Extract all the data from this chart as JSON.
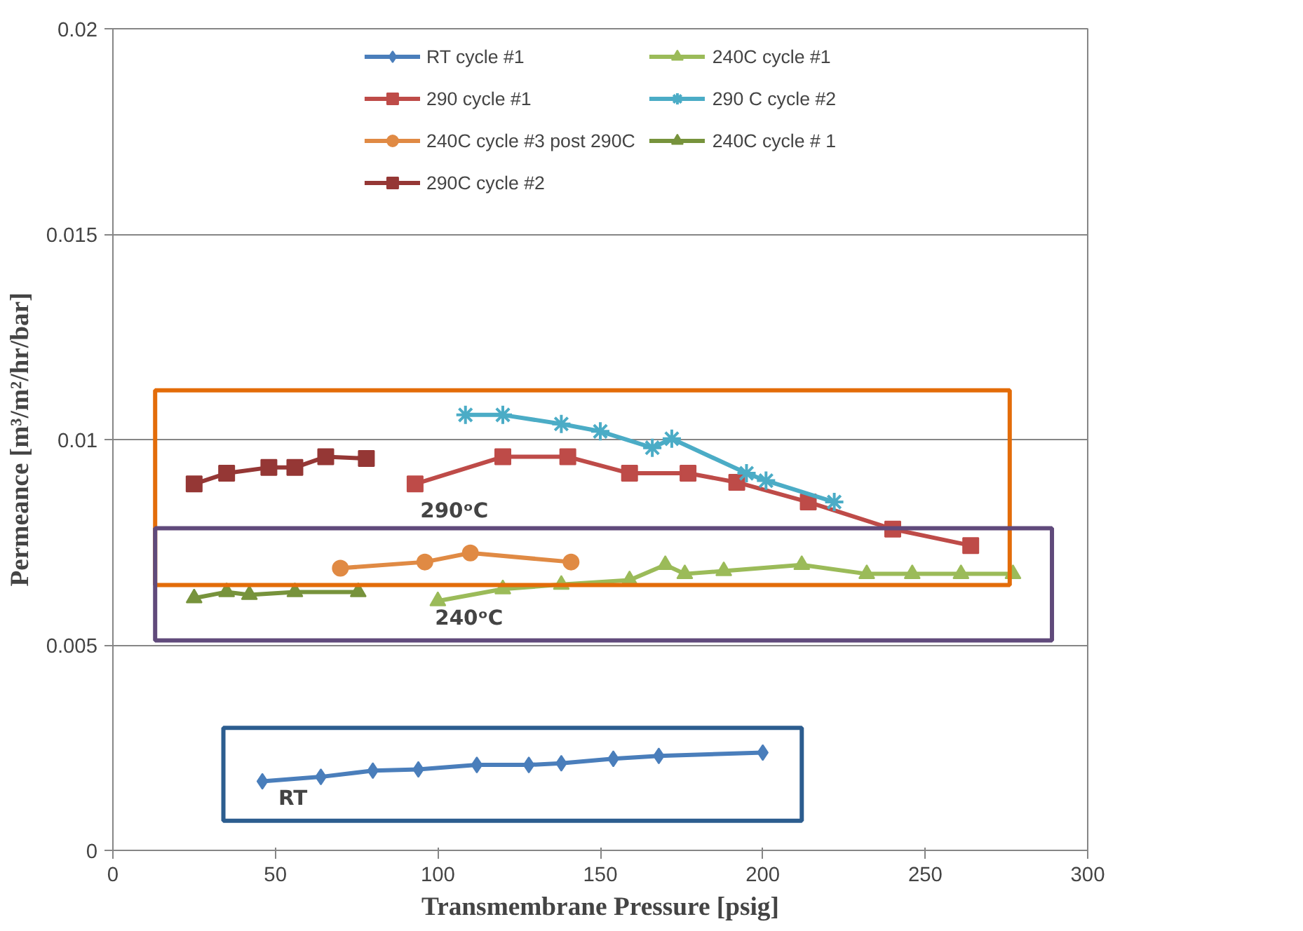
{
  "chart_data": {
    "type": "line",
    "xlabel": "Transmembrane Pressure [psig]",
    "ylabel": "Permeance [m³/m²/hr/bar]",
    "xlim": [
      0,
      300
    ],
    "xticks": [
      0,
      50,
      100,
      150,
      200,
      250,
      300
    ],
    "ylim": [
      0,
      0.02
    ],
    "yticks": [
      0,
      0.005,
      0.01,
      0.015,
      0.02
    ],
    "grid": "y",
    "legend": "top",
    "line_style": "solid",
    "annotations": [
      "290ᵒC",
      "240ᵒC",
      "RT"
    ],
    "series": [
      {
        "name": "RT cycle #1",
        "color": "#4a7ebb",
        "marker": "diamond",
        "x": [
          46,
          64,
          80,
          94,
          112,
          128,
          138,
          154,
          168,
          200
        ],
        "values": [
          0.00168,
          0.00179,
          0.00194,
          0.00197,
          0.00208,
          0.00208,
          0.00212,
          0.00223,
          0.0023,
          0.00238
        ]
      },
      {
        "name": "240C cycle #1",
        "color": "#9bbb59",
        "marker": "triangle",
        "x": [
          100,
          120,
          138,
          159,
          170,
          176,
          188,
          212,
          232,
          246,
          261,
          277
        ],
        "values": [
          0.00607,
          0.00636,
          0.00647,
          0.00658,
          0.00695,
          0.00673,
          0.0068,
          0.00695,
          0.00673,
          0.00673,
          0.00673,
          0.00673
        ]
      },
      {
        "name": "290 cycle #1",
        "color": "#be4b48",
        "marker": "square",
        "x": [
          93,
          120,
          140,
          159,
          177,
          192,
          214,
          240,
          264
        ],
        "values": [
          0.00892,
          0.00958,
          0.00958,
          0.00918,
          0.00918,
          0.00896,
          0.00848,
          0.00782,
          0.00742
        ]
      },
      {
        "name": "290 C cycle #2",
        "color": "#4bacc6",
        "marker": "cross",
        "x": [
          108.5,
          120,
          138,
          150,
          166,
          172,
          195,
          201,
          222
        ],
        "values": [
          0.0106,
          0.0106,
          0.01038,
          0.0102,
          0.0098,
          0.01002,
          0.00918,
          0.009,
          0.00848
        ]
      },
      {
        "name": "240C cycle #3 post 290C",
        "color": "#e08a44",
        "marker": "circle",
        "x": [
          70,
          96,
          110,
          141
        ],
        "values": [
          0.00687,
          0.00702,
          0.00724,
          0.00702
        ]
      },
      {
        "name": "240C cycle # 1",
        "color": "#77933c",
        "marker": "triangle",
        "x": [
          25,
          35,
          42,
          56,
          75.5
        ],
        "values": [
          0.00614,
          0.00629,
          0.00622,
          0.00629,
          0.00629
        ]
      },
      {
        "name": "290C cycle #2",
        "color": "#953735",
        "marker": "square",
        "x": [
          25,
          35,
          48,
          56,
          65.5,
          78
        ],
        "values": [
          0.00892,
          0.00918,
          0.00932,
          0.00932,
          0.00958,
          0.00954
        ]
      }
    ]
  }
}
